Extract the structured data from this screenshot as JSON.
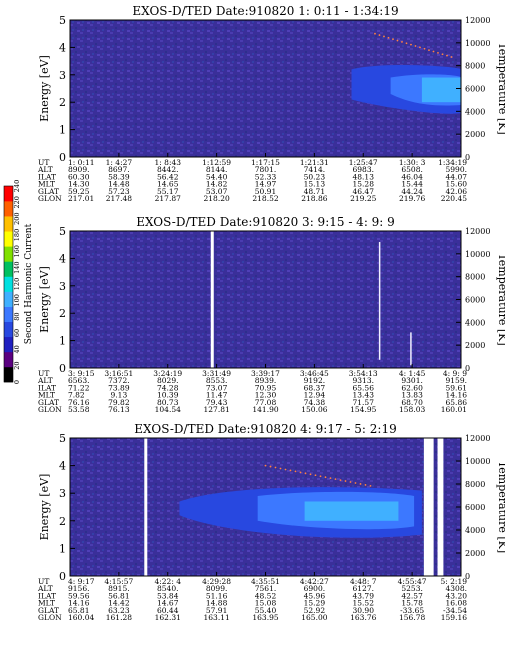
{
  "chart_data": [
    {
      "type": "heatmap",
      "title": "EXOS-D/TED   Date:910820   1: 0:11 - 1:34:19",
      "ylabel": "Energy [eV]",
      "ylabel_right": "Temperature [K]",
      "ylim": [
        0,
        5
      ],
      "yticks": [
        "0",
        "1",
        "2",
        "3",
        "4",
        "5"
      ],
      "ylim_right": [
        0,
        12000
      ],
      "yticks_right": [
        "0",
        "2000",
        "4000",
        "6000",
        "8000",
        "10000",
        "12000"
      ],
      "band": {
        "center_ev": 2.6,
        "half_width_ev": 0.6,
        "starts_at_column": 6
      },
      "table": {
        "row_labels": [
          "UT",
          "ALT",
          "ILAT",
          "MLT",
          "GLAT",
          "GLON"
        ],
        "columns": [
          [
            "1: 0:11",
            "8909.",
            "60.30",
            "14.30",
            "59.25",
            "217.01"
          ],
          [
            "1: 4:27",
            "8697.",
            "58.39",
            "14.48",
            "57.23",
            "217.48"
          ],
          [
            "1: 8:43",
            "8442.",
            "56.42",
            "14.65",
            "55.17",
            "217.87"
          ],
          [
            "1:12:59",
            "8144.",
            "54.40",
            "14.82",
            "53.07",
            "218.20"
          ],
          [
            "1:17:15",
            "7801.",
            "52.33",
            "14.97",
            "50.91",
            "218.52"
          ],
          [
            "1:21:31",
            "7414.",
            "50.23",
            "15.13",
            "48.71",
            "218.86"
          ],
          [
            "1:25:47",
            "6983.",
            "48.13",
            "15.28",
            "46.47",
            "219.25"
          ],
          [
            "1:30: 3",
            "6508.",
            "46.04",
            "15.44",
            "44.24",
            "219.76"
          ],
          [
            "1:34:19",
            "5990.",
            "44.07",
            "15.60",
            "42.06",
            "220.45"
          ]
        ]
      }
    },
    {
      "type": "heatmap",
      "title": "EXOS-D/TED   Date:910820   3: 9:15 - 4: 9: 9",
      "ylabel": "Energy [eV]",
      "ylabel_right": "Temperature [K]",
      "ylim": [
        0,
        5
      ],
      "yticks": [
        "0",
        "1",
        "2",
        "3",
        "4",
        "5"
      ],
      "ylim_right": [
        0,
        12000
      ],
      "yticks_right": [
        "0",
        "2000",
        "4000",
        "6000",
        "8000",
        "10000",
        "12000"
      ],
      "table": {
        "row_labels": [
          "UT",
          "ALT",
          "ILAT",
          "MLT",
          "GLAT",
          "GLON"
        ],
        "columns": [
          [
            "3: 9:15",
            "6563.",
            "71.22",
            "7.82",
            "76.16",
            "53.58"
          ],
          [
            "3:16:51",
            "7372.",
            "73.89",
            "9.13",
            "79.82",
            "76.13"
          ],
          [
            "3:24:19",
            "8029.",
            "74.28",
            "10.39",
            "80.73",
            "104.54"
          ],
          [
            "3:31:49",
            "8553.",
            "73.07",
            "11.47",
            "79.43",
            "127.81"
          ],
          [
            "3:39:17",
            "8939.",
            "70.95",
            "12.30",
            "77.08",
            "141.90"
          ],
          [
            "3:46:45",
            "9192.",
            "68.37",
            "12.94",
            "74.38",
            "150.06"
          ],
          [
            "3:54:13",
            "9313.",
            "65.56",
            "13.43",
            "71.57",
            "154.95"
          ],
          [
            "4: 1:45",
            "9301.",
            "62.60",
            "13.83",
            "68.70",
            "158.03"
          ],
          [
            "4: 9: 9",
            "9159.",
            "59.61",
            "14.16",
            "65.86",
            "160.01"
          ]
        ]
      }
    },
    {
      "type": "heatmap",
      "title": "EXOS-D/TED   Date:910820   4: 9:17 - 5: 2:19",
      "ylabel": "Energy [eV]",
      "ylabel_right": "Temperature [K]",
      "ylim": [
        0,
        5
      ],
      "yticks": [
        "0",
        "1",
        "2",
        "3",
        "4",
        "5"
      ],
      "ylim_right": [
        0,
        12000
      ],
      "yticks_right": [
        "0",
        "2000",
        "4000",
        "6000",
        "8000",
        "10000",
        "12000"
      ],
      "table": {
        "row_labels": [
          "UT",
          "ALT",
          "ILAT",
          "MLT",
          "GLAT",
          "GLON"
        ],
        "columns": [
          [
            "4: 9:17",
            "9156.",
            "59.56",
            "14.16",
            "65.81",
            "160.04"
          ],
          [
            "4:15:57",
            "8915.",
            "56.81",
            "14.42",
            "63.23",
            "161.28"
          ],
          [
            "4:22: 4",
            "8540.",
            "53.84",
            "14.67",
            "60.44",
            "162.31"
          ],
          [
            "4:29:28",
            "8099.",
            "51.16",
            "14.88",
            "57.91",
            "163.11"
          ],
          [
            "4:35:51",
            "7561.",
            "48.52",
            "15.08",
            "55.40",
            "163.95"
          ],
          [
            "4:42:27",
            "6900.",
            "45.96",
            "15.29",
            "52.92",
            "165.00"
          ],
          [
            "4:48: 7",
            "6127.",
            "43.79",
            "15.52",
            "30.90",
            "163.76"
          ],
          [
            "4:55:47",
            "5253.",
            "42.57",
            "15.78",
            "-33.65",
            "156.78"
          ],
          [
            "5: 2:19",
            "4308.",
            "43.20",
            "16.08",
            "-34.54",
            "159.16"
          ]
        ]
      }
    }
  ],
  "colorbar": {
    "label": "Second Harmonic Current",
    "ticks": [
      "0",
      "20",
      "40",
      "60",
      "80",
      "100",
      "120",
      "140",
      "160",
      "180",
      "200",
      "220",
      "240"
    ],
    "colors": [
      "#000000",
      "#5a0080",
      "#2020c0",
      "#2848e0",
      "#3c78ff",
      "#40b0ff",
      "#00e0e0",
      "#00c060",
      "#80e000",
      "#ffff00",
      "#ffc000",
      "#ff6000",
      "#ff0000"
    ]
  }
}
